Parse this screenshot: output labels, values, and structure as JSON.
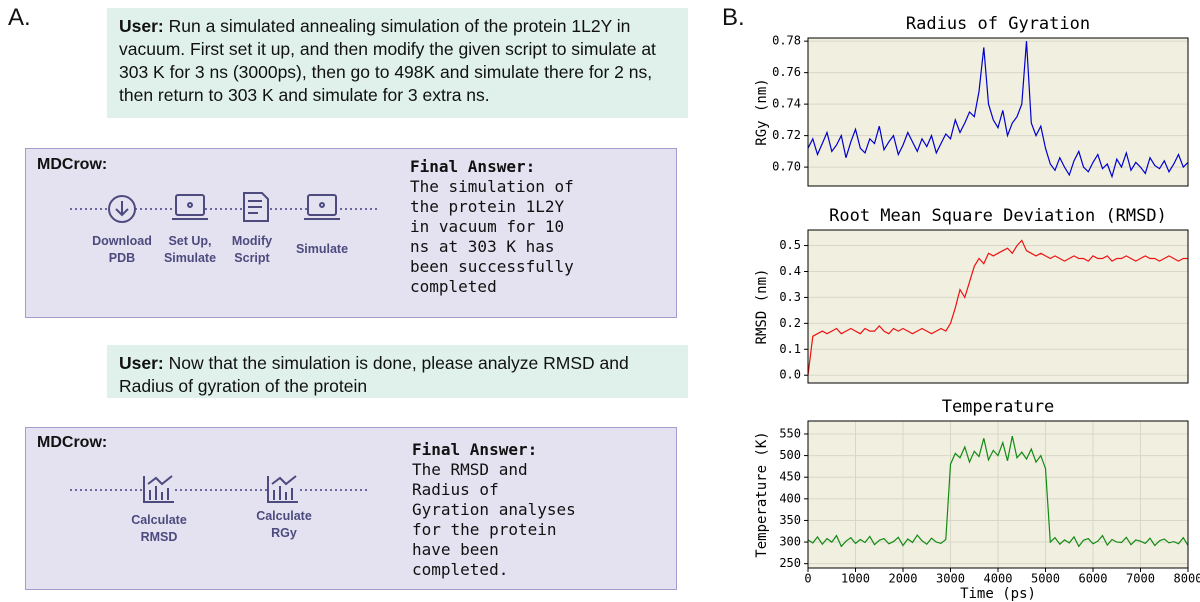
{
  "panel_a": {
    "label": "A.",
    "user_1": {
      "speaker": "User:",
      "text": "Run a simulated annealing simulation of the protein 1L2Y in vacuum. First set it up, and then modify the given script to simulate at 303 K for 3 ns (3000ps), then go to 498K and simulate there for 2 ns, then return to 303 K and simulate for 3 extra ns."
    },
    "agent_1": {
      "name": "MDCrow:",
      "steps": [
        "Download PDB",
        "Set Up, Simulate",
        "Modify Script",
        "Simulate"
      ],
      "answer_title": "Final Answer:",
      "answer": "The simulation of the protein 1L2Y in vacuum for 10 ns at 303 K has been successfully completed"
    },
    "user_2": {
      "speaker": "User:",
      "text": "Now that the simulation is done, please analyze RMSD and Radius of gyration of the protein"
    },
    "agent_2": {
      "name": "MDCrow:",
      "steps": [
        "Calculate RMSD",
        "Calculate RGy"
      ],
      "answer_title": "Final Answer:",
      "answer": "The RMSD and Radius of Gyration analyses for the protein have been completed."
    }
  },
  "panel_b_label": "B.",
  "chart_data": [
    {
      "type": "line",
      "title": "Radius of Gyration",
      "y_label": "RGy (nm)",
      "color": "#0000cc",
      "grid": true,
      "xlim": [
        0,
        8000
      ],
      "ylim": [
        0.688,
        0.782
      ],
      "yticks": [
        {
          "value": 0.7,
          "label": "0.70"
        },
        0.72,
        0.74,
        0.76,
        0.78
      ],
      "x": [
        0,
        100,
        200,
        300,
        400,
        500,
        600,
        700,
        800,
        900,
        1000,
        1100,
        1200,
        1300,
        1400,
        1500,
        1600,
        1700,
        1800,
        1900,
        2000,
        2100,
        2200,
        2300,
        2400,
        2500,
        2600,
        2700,
        2800,
        2900,
        3000,
        3100,
        3200,
        3300,
        3400,
        3500,
        3600,
        3700,
        3800,
        3900,
        4000,
        4100,
        4200,
        4300,
        4400,
        4500,
        4600,
        4700,
        4800,
        4900,
        5000,
        5100,
        5200,
        5300,
        5400,
        5500,
        5600,
        5700,
        5800,
        5900,
        6000,
        6100,
        6200,
        6300,
        6400,
        6500,
        6600,
        6700,
        6800,
        6900,
        7000,
        7100,
        7200,
        7300,
        7400,
        7500,
        7600,
        7700,
        7800,
        7900,
        8000
      ],
      "values": [
        0.712,
        0.718,
        0.708,
        0.715,
        0.722,
        0.71,
        0.714,
        0.72,
        0.706,
        0.716,
        0.724,
        0.712,
        0.709,
        0.718,
        0.715,
        0.726,
        0.711,
        0.716,
        0.72,
        0.708,
        0.714,
        0.722,
        0.716,
        0.71,
        0.718,
        0.713,
        0.72,
        0.709,
        0.715,
        0.721,
        0.718,
        0.73,
        0.722,
        0.728,
        0.735,
        0.732,
        0.748,
        0.776,
        0.74,
        0.73,
        0.725,
        0.736,
        0.72,
        0.728,
        0.732,
        0.74,
        0.78,
        0.728,
        0.72,
        0.726,
        0.712,
        0.702,
        0.698,
        0.706,
        0.7,
        0.695,
        0.704,
        0.71,
        0.7,
        0.697,
        0.703,
        0.708,
        0.699,
        0.702,
        0.694,
        0.705,
        0.7,
        0.709,
        0.698,
        0.703,
        0.7,
        0.696,
        0.706,
        0.701,
        0.699,
        0.704,
        0.697,
        0.702,
        0.708,
        0.7,
        0.703
      ]
    },
    {
      "type": "line",
      "title": "Root Mean Square Deviation (RMSD)",
      "y_label": "RMSD (nm)",
      "color": "#ee1111",
      "grid": true,
      "xlim": [
        0,
        8000
      ],
      "ylim": [
        -0.03,
        0.56
      ],
      "yticks": [
        {
          "value": 0,
          "label": "0.0"
        },
        0.1,
        0.2,
        0.3,
        0.4,
        0.5
      ],
      "x": [
        0,
        100,
        200,
        300,
        400,
        500,
        600,
        700,
        800,
        900,
        1000,
        1100,
        1200,
        1300,
        1400,
        1500,
        1600,
        1700,
        1800,
        1900,
        2000,
        2100,
        2200,
        2300,
        2400,
        2500,
        2600,
        2700,
        2800,
        2900,
        3000,
        3100,
        3200,
        3300,
        3400,
        3500,
        3600,
        3700,
        3800,
        3900,
        4000,
        4100,
        4200,
        4300,
        4400,
        4500,
        4600,
        4700,
        4800,
        4900,
        5000,
        5100,
        5200,
        5300,
        5400,
        5500,
        5600,
        5700,
        5800,
        5900,
        6000,
        6100,
        6200,
        6300,
        6400,
        6500,
        6600,
        6700,
        6800,
        6900,
        7000,
        7100,
        7200,
        7300,
        7400,
        7500,
        7600,
        7700,
        7800,
        7900,
        8000
      ],
      "values": [
        0.0,
        0.15,
        0.16,
        0.17,
        0.16,
        0.17,
        0.18,
        0.16,
        0.17,
        0.18,
        0.17,
        0.16,
        0.18,
        0.17,
        0.17,
        0.19,
        0.17,
        0.16,
        0.18,
        0.17,
        0.18,
        0.17,
        0.16,
        0.17,
        0.18,
        0.17,
        0.16,
        0.17,
        0.18,
        0.17,
        0.2,
        0.26,
        0.33,
        0.3,
        0.36,
        0.42,
        0.45,
        0.43,
        0.47,
        0.46,
        0.47,
        0.48,
        0.49,
        0.47,
        0.5,
        0.52,
        0.48,
        0.47,
        0.46,
        0.47,
        0.46,
        0.45,
        0.46,
        0.45,
        0.44,
        0.45,
        0.46,
        0.45,
        0.45,
        0.44,
        0.46,
        0.45,
        0.45,
        0.46,
        0.44,
        0.45,
        0.45,
        0.46,
        0.45,
        0.44,
        0.45,
        0.46,
        0.45,
        0.45,
        0.44,
        0.45,
        0.46,
        0.45,
        0.44,
        0.45,
        0.45
      ]
    },
    {
      "type": "line",
      "title": "Temperature",
      "y_label": "Temperature (K)",
      "x_label": "Time (ps)",
      "color": "#138a13",
      "grid": true,
      "xlim": [
        0,
        8000
      ],
      "ylim": [
        240,
        580
      ],
      "xticks": [
        0,
        1000,
        2000,
        3000,
        4000,
        5000,
        6000,
        7000,
        8000
      ],
      "yticks": [
        250,
        300,
        350,
        400,
        450,
        500,
        550
      ],
      "x": [
        0,
        100,
        200,
        300,
        400,
        500,
        600,
        700,
        800,
        900,
        1000,
        1100,
        1200,
        1300,
        1400,
        1500,
        1600,
        1700,
        1800,
        1900,
        2000,
        2100,
        2200,
        2300,
        2400,
        2500,
        2600,
        2700,
        2800,
        2900,
        3000,
        3100,
        3200,
        3300,
        3400,
        3500,
        3600,
        3700,
        3800,
        3900,
        4000,
        4100,
        4200,
        4300,
        4400,
        4500,
        4600,
        4700,
        4800,
        4900,
        5000,
        5100,
        5200,
        5300,
        5400,
        5500,
        5600,
        5700,
        5800,
        5900,
        6000,
        6100,
        6200,
        6300,
        6400,
        6500,
        6600,
        6700,
        6800,
        6900,
        7000,
        7100,
        7200,
        7300,
        7400,
        7500,
        7600,
        7700,
        7800,
        7900,
        8000
      ],
      "values": [
        305,
        298,
        312,
        295,
        308,
        300,
        315,
        290,
        302,
        310,
        297,
        306,
        299,
        313,
        294,
        304,
        308,
        296,
        301,
        311,
        292,
        307,
        299,
        316,
        303,
        295,
        309,
        300,
        297,
        306,
        480,
        505,
        495,
        520,
        485,
        510,
        498,
        540,
        490,
        512,
        500,
        530,
        488,
        545,
        495,
        508,
        492,
        515,
        485,
        500,
        470,
        300,
        310,
        295,
        305,
        298,
        312,
        290,
        304,
        308,
        296,
        302,
        315,
        293,
        306,
        300,
        299,
        311,
        294,
        305,
        302,
        297,
        309,
        292,
        303,
        307,
        298,
        301,
        296,
        310,
        292
      ]
    }
  ]
}
